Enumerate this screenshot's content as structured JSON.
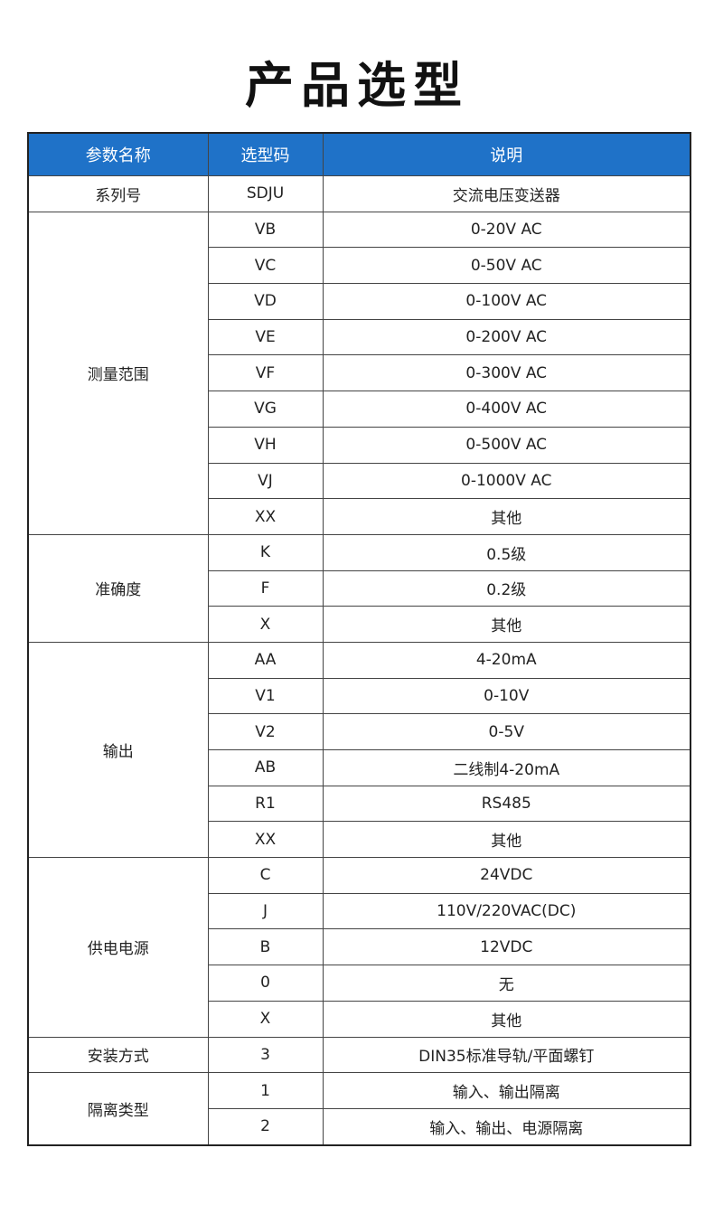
{
  "title": "产品选型",
  "headers": [
    "参数名称",
    "选型码",
    "说明"
  ],
  "header_color": "#1f72c8",
  "groups": [
    {
      "param": "系列号",
      "items": [
        {
          "code": "SDJU",
          "desc": "交流电压变送器"
        }
      ]
    },
    {
      "param": "测量范围",
      "items": [
        {
          "code": "VB",
          "desc": "0-20V AC"
        },
        {
          "code": "VC",
          "desc": "0-50V AC"
        },
        {
          "code": "VD",
          "desc": "0-100V AC"
        },
        {
          "code": "VE",
          "desc": "0-200V AC"
        },
        {
          "code": "VF",
          "desc": "0-300V AC"
        },
        {
          "code": "VG",
          "desc": "0-400V AC"
        },
        {
          "code": "VH",
          "desc": "0-500V AC"
        },
        {
          "code": "VJ",
          "desc": "0-1000V AC"
        },
        {
          "code": "XX",
          "desc": "其他"
        }
      ]
    },
    {
      "param": "准确度",
      "items": [
        {
          "code": "K",
          "desc": "0.5级"
        },
        {
          "code": "F",
          "desc": "0.2级"
        },
        {
          "code": "X",
          "desc": "其他"
        }
      ]
    },
    {
      "param": "输出",
      "items": [
        {
          "code": "AA",
          "desc": "4-20mA"
        },
        {
          "code": "V1",
          "desc": "0-10V"
        },
        {
          "code": "V2",
          "desc": "0-5V"
        },
        {
          "code": "AB",
          "desc": "二线制4-20mA"
        },
        {
          "code": "R1",
          "desc": "RS485"
        },
        {
          "code": "XX",
          "desc": "其他"
        }
      ]
    },
    {
      "param": "供电电源",
      "items": [
        {
          "code": "C",
          "desc": "24VDC"
        },
        {
          "code": "J",
          "desc": "110V/220VAC(DC)"
        },
        {
          "code": "B",
          "desc": "12VDC"
        },
        {
          "code": "0",
          "desc": "无"
        },
        {
          "code": "X",
          "desc": "其他"
        }
      ]
    },
    {
      "param": "安装方式",
      "items": [
        {
          "code": "3",
          "desc": "DIN35标准导轨/平面螺钉"
        }
      ]
    },
    {
      "param": "隔离类型",
      "items": [
        {
          "code": "1",
          "desc": "输入、输出隔离"
        },
        {
          "code": "2",
          "desc": "输入、输出、电源隔离"
        }
      ]
    }
  ]
}
